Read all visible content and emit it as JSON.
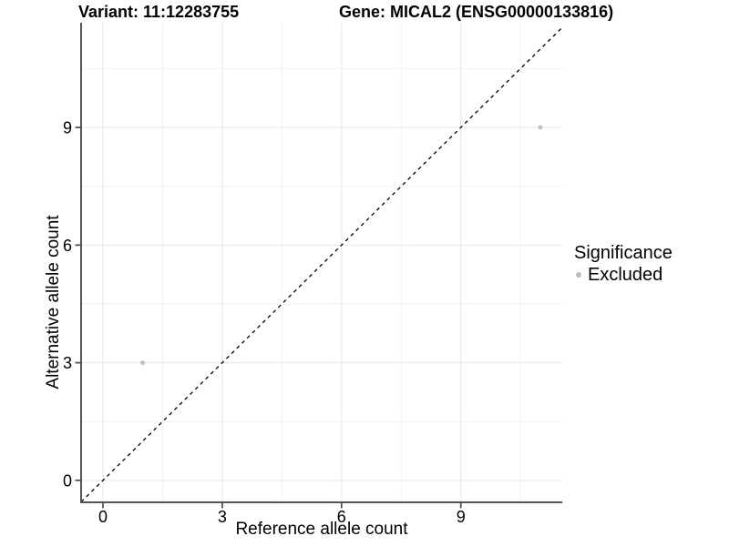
{
  "header": {
    "variant_title": "Variant: 11:12283755",
    "gene_title": "Gene: MICAL2 (ENSG00000133816)"
  },
  "legend": {
    "title": "Significance",
    "items": [
      {
        "label": "Excluded",
        "color": "#bdbdbd"
      }
    ]
  },
  "chart_data": {
    "type": "scatter",
    "title": "Variant: 11:12283755  Gene: MICAL2 (ENSG00000133816)",
    "xlabel": "Reference allele count",
    "ylabel": "Alternative allele count",
    "x_ticks": [
      0,
      3,
      6,
      9
    ],
    "y_ticks": [
      0,
      3,
      6,
      9
    ],
    "x_minor_ticks": [
      1.5,
      4.5,
      7.5,
      10.5
    ],
    "y_minor_ticks": [
      1.5,
      4.5,
      7.5,
      10.5
    ],
    "xlim": [
      -0.55,
      11.55
    ],
    "ylim": [
      -0.56,
      11.67
    ],
    "grid": "major+minor",
    "legend_position": "right",
    "identity_line": {
      "equation": "y = x",
      "style": "dashed",
      "color": "#000000"
    },
    "series": [
      {
        "name": "Excluded",
        "color": "#bdbdbd",
        "points": [
          {
            "x": 1,
            "y": 3
          },
          {
            "x": 11,
            "y": 9
          }
        ]
      }
    ],
    "colors": {
      "axis": "#555555",
      "tick": "#555555",
      "grid_major": "#e6e6e6",
      "grid_minor": "#f2f2f2",
      "text": "#000000",
      "background": "#ffffff"
    }
  }
}
